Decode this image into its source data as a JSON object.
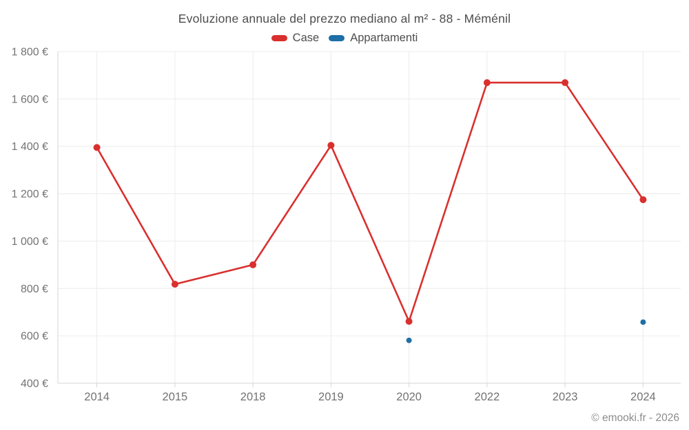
{
  "chart": {
    "title": "Evoluzione annuale del prezzo mediano al m² - 88 - Méménil",
    "legend": [
      {
        "label": "Case",
        "color": "#d9302e"
      },
      {
        "label": "Appartamenti",
        "color": "#1d6fa5"
      }
    ]
  },
  "footer": {
    "copyright": "© emooki.fr - 2026"
  },
  "chart_data": {
    "type": "line",
    "title": "Evoluzione annuale del prezzo mediano al m² - 88 - Méménil",
    "categories": [
      "2014",
      "2015",
      "2018",
      "2019",
      "2020",
      "2022",
      "2023",
      "2024"
    ],
    "series": [
      {
        "name": "Case",
        "color": "#d9302e",
        "show_line": true,
        "point_radius": 5,
        "values": [
          1395,
          818,
          900,
          1404,
          661,
          1669,
          1669,
          1175
        ]
      },
      {
        "name": "Appartamenti",
        "color": "#1d6fa5",
        "show_line": false,
        "point_radius": 4,
        "values": [
          null,
          null,
          null,
          null,
          581,
          null,
          null,
          658
        ]
      }
    ],
    "xlabel": "",
    "ylabel": "",
    "ylim": [
      400,
      1800
    ],
    "y_tick_step": 200,
    "y_tick_labels": [
      "400 €",
      "600 €",
      "800 €",
      "1 000 €",
      "1 200 €",
      "1 400 €",
      "1 600 €",
      "1 800 €"
    ],
    "grid": true,
    "legend_position": "top",
    "colors": {
      "grid_line": "#ececec",
      "axis_line": "#d4d4d4",
      "tick_text": "#737373",
      "title_text": "#4d4d4d"
    }
  }
}
